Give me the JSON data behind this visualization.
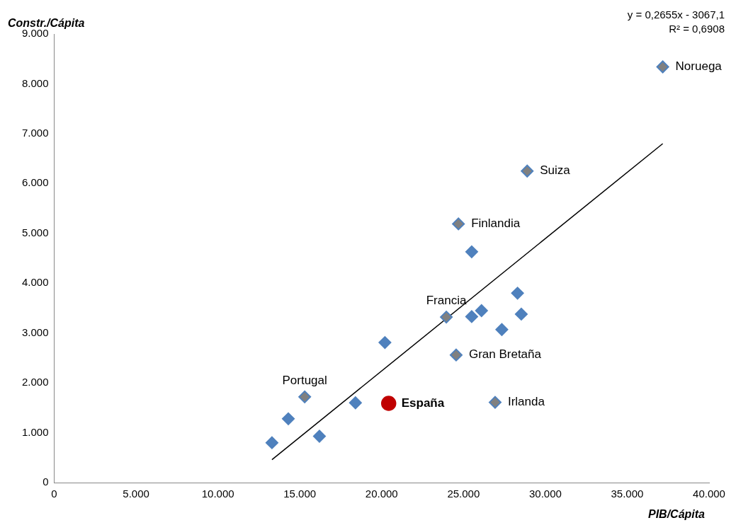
{
  "chart_data": {
    "type": "scatter",
    "xlabel": "PIB/Cápita",
    "ylabel": "Constr./Cápita",
    "xlim": [
      0,
      40000
    ],
    "xticks": [
      0,
      {
        "value": 5000,
        "label": "5.000"
      },
      {
        "value": 10000,
        "label": "10.000"
      },
      {
        "value": 15000,
        "label": "15.000"
      },
      {
        "value": 20000,
        "label": "20.000"
      },
      {
        "value": 25000,
        "label": "25.000"
      },
      {
        "value": 30000,
        "label": "30.000"
      },
      {
        "value": 35000,
        "label": "35.000"
      },
      {
        "value": 40000,
        "label": "40.000"
      }
    ],
    "ylim": [
      0,
      9000
    ],
    "yticks": [
      0,
      {
        "value": 1000,
        "label": "1.000"
      },
      {
        "value": 2000,
        "label": "2.000"
      },
      {
        "value": 3000,
        "label": "3.000"
      },
      {
        "value": 4000,
        "label": "4.000"
      },
      {
        "value": 5000,
        "label": "5.000"
      },
      {
        "value": 6000,
        "label": "6.000"
      },
      {
        "value": 7000,
        "label": "7.000"
      },
      {
        "value": 8000,
        "label": "8.000"
      },
      {
        "value": 9000,
        "label": "9.000"
      }
    ],
    "grid": false,
    "legend": false,
    "marker": "diamond",
    "series": [
      {
        "type": "scatter",
        "color": "#4f81bd",
        "x": [
          13300,
          14300,
          15300,
          16200,
          18400,
          20200,
          23950,
          25500,
          26100,
          27340,
          28300,
          28530,
          24550,
          26930,
          24690,
          25500,
          28890,
          37170
        ],
        "values": [
          800,
          1280,
          1720,
          930,
          1600,
          2810,
          3320,
          3330,
          3450,
          3070,
          3800,
          3380,
          2560,
          1610,
          5190,
          4630,
          6250,
          8340
        ],
        "colors": [
          "#4f81bd",
          "#4f81bd",
          "#808080",
          "#4f81bd",
          "#4f81bd",
          "#4f81bd",
          "#808080",
          "#4f81bd",
          "#4f81bd",
          "#4f81bd",
          "#4f81bd",
          "#4f81bd",
          "#808080",
          "#808080",
          "#808080",
          "#4f81bd",
          "#808080",
          "#808080"
        ]
      },
      {
        "type": "scatter",
        "color": "#c00000",
        "marker": "circle",
        "x": [
          20430
        ],
        "values": [
          1590
        ]
      },
      {
        "type": "line",
        "color": "#000000",
        "marker": "none",
        "x": [
          13300,
          37170
        ],
        "values": [
          460,
          6800
        ]
      }
    ],
    "annotations": [
      {
        "text": "Noruega",
        "x": 37170,
        "y": 8340
      },
      {
        "text": "Suiza",
        "x": 28890,
        "y": 6250
      },
      {
        "text": "Finlandia",
        "x": 24690,
        "y": 5190
      },
      {
        "text": "Francia",
        "x": 23950,
        "y": 3320
      },
      {
        "text": "Gran Bretaña",
        "x": 24550,
        "y": 2560
      },
      {
        "text": "Portugal",
        "x": 15300,
        "y": 1720
      },
      {
        "text": "España",
        "x": 20430,
        "y": 1590
      },
      {
        "text": "Irlanda",
        "x": 26930,
        "y": 1610
      },
      "y = 0,2655x - 3067,1",
      "R² = 0,6908"
    ]
  }
}
